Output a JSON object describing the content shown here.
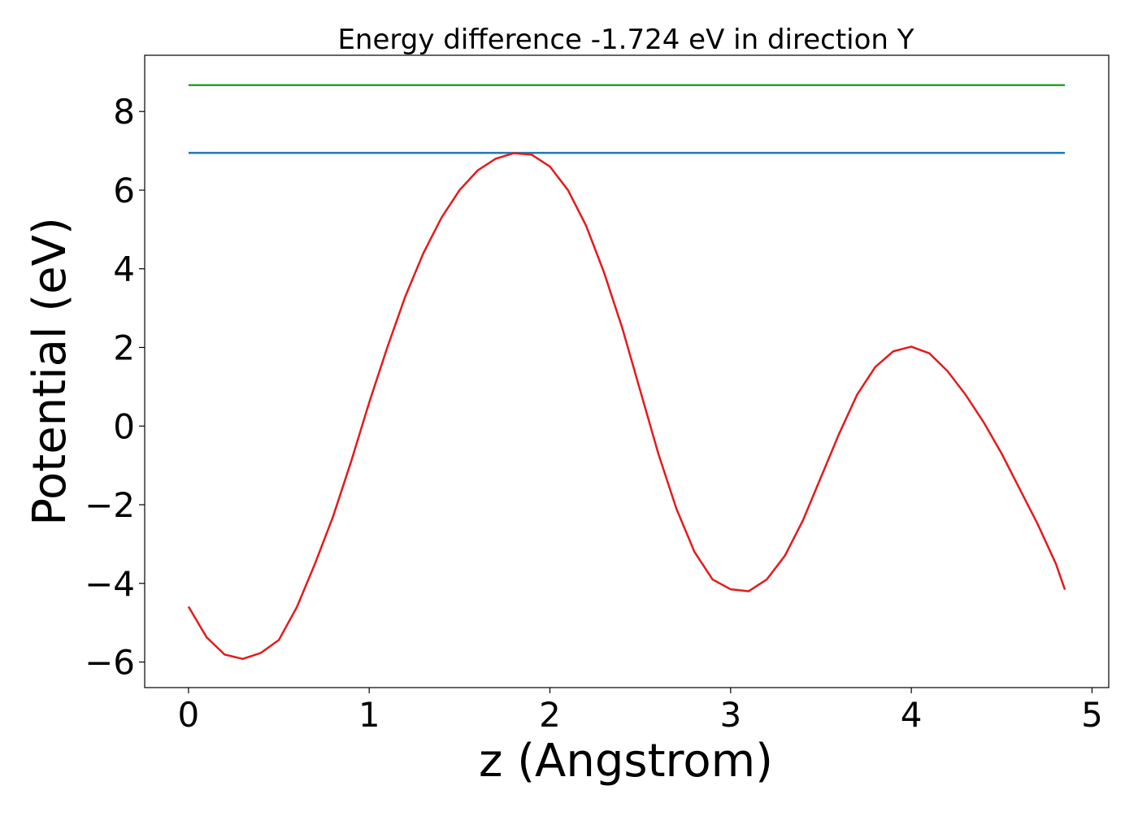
{
  "chart_data": {
    "type": "line",
    "title": "Energy difference -1.724 eV in direction Y",
    "xlabel": "z (Angstrom)",
    "ylabel": "Potential (eV)",
    "xlim": [
      -0.2425,
      5.0925
    ],
    "ylim": [
      -6.65,
      9.43
    ],
    "xticks": [
      0,
      1,
      2,
      3,
      4,
      5
    ],
    "yticks": [
      {
        "value": -6,
        "label": "−6"
      },
      {
        "value": -4,
        "label": "−4"
      },
      {
        "value": -2,
        "label": "−2"
      },
      0,
      2,
      4,
      6,
      8
    ],
    "series": [
      {
        "color": "#2ca02c",
        "x": [
          0,
          4.85
        ],
        "values": [
          8.67,
          8.67
        ]
      },
      {
        "color": "#1f77b4",
        "x": [
          0,
          4.85
        ],
        "values": [
          6.946,
          6.946
        ]
      },
      {
        "color": "#e41a1c",
        "x": [
          0,
          0.1,
          0.2,
          0.3,
          0.4,
          0.5,
          0.6,
          0.7,
          0.8,
          0.9,
          1.0,
          1.1,
          1.2,
          1.3,
          1.4,
          1.5,
          1.6,
          1.7,
          1.8,
          1.9,
          2.0,
          2.1,
          2.2,
          2.3,
          2.4,
          2.5,
          2.6,
          2.7,
          2.8,
          2.9,
          3.0,
          3.1,
          3.2,
          3.3,
          3.4,
          3.5,
          3.6,
          3.7,
          3.8,
          3.9,
          4.0,
          4.1,
          4.2,
          4.3,
          4.4,
          4.5,
          4.6,
          4.7,
          4.8,
          4.85
        ],
        "values": [
          -4.59,
          -5.37,
          -5.81,
          -5.92,
          -5.77,
          -5.44,
          -4.6,
          -3.5,
          -2.3,
          -0.9,
          0.6,
          2.0,
          3.3,
          4.4,
          5.3,
          6.0,
          6.5,
          6.8,
          6.94,
          6.9,
          6.6,
          6.0,
          5.1,
          3.9,
          2.5,
          0.9,
          -0.7,
          -2.1,
          -3.2,
          -3.9,
          -4.15,
          -4.2,
          -3.9,
          -3.3,
          -2.4,
          -1.3,
          -0.2,
          0.8,
          1.5,
          1.9,
          2.02,
          1.85,
          1.4,
          0.8,
          0.1,
          -0.7,
          -1.6,
          -2.5,
          -3.5,
          -4.16
        ]
      }
    ]
  }
}
